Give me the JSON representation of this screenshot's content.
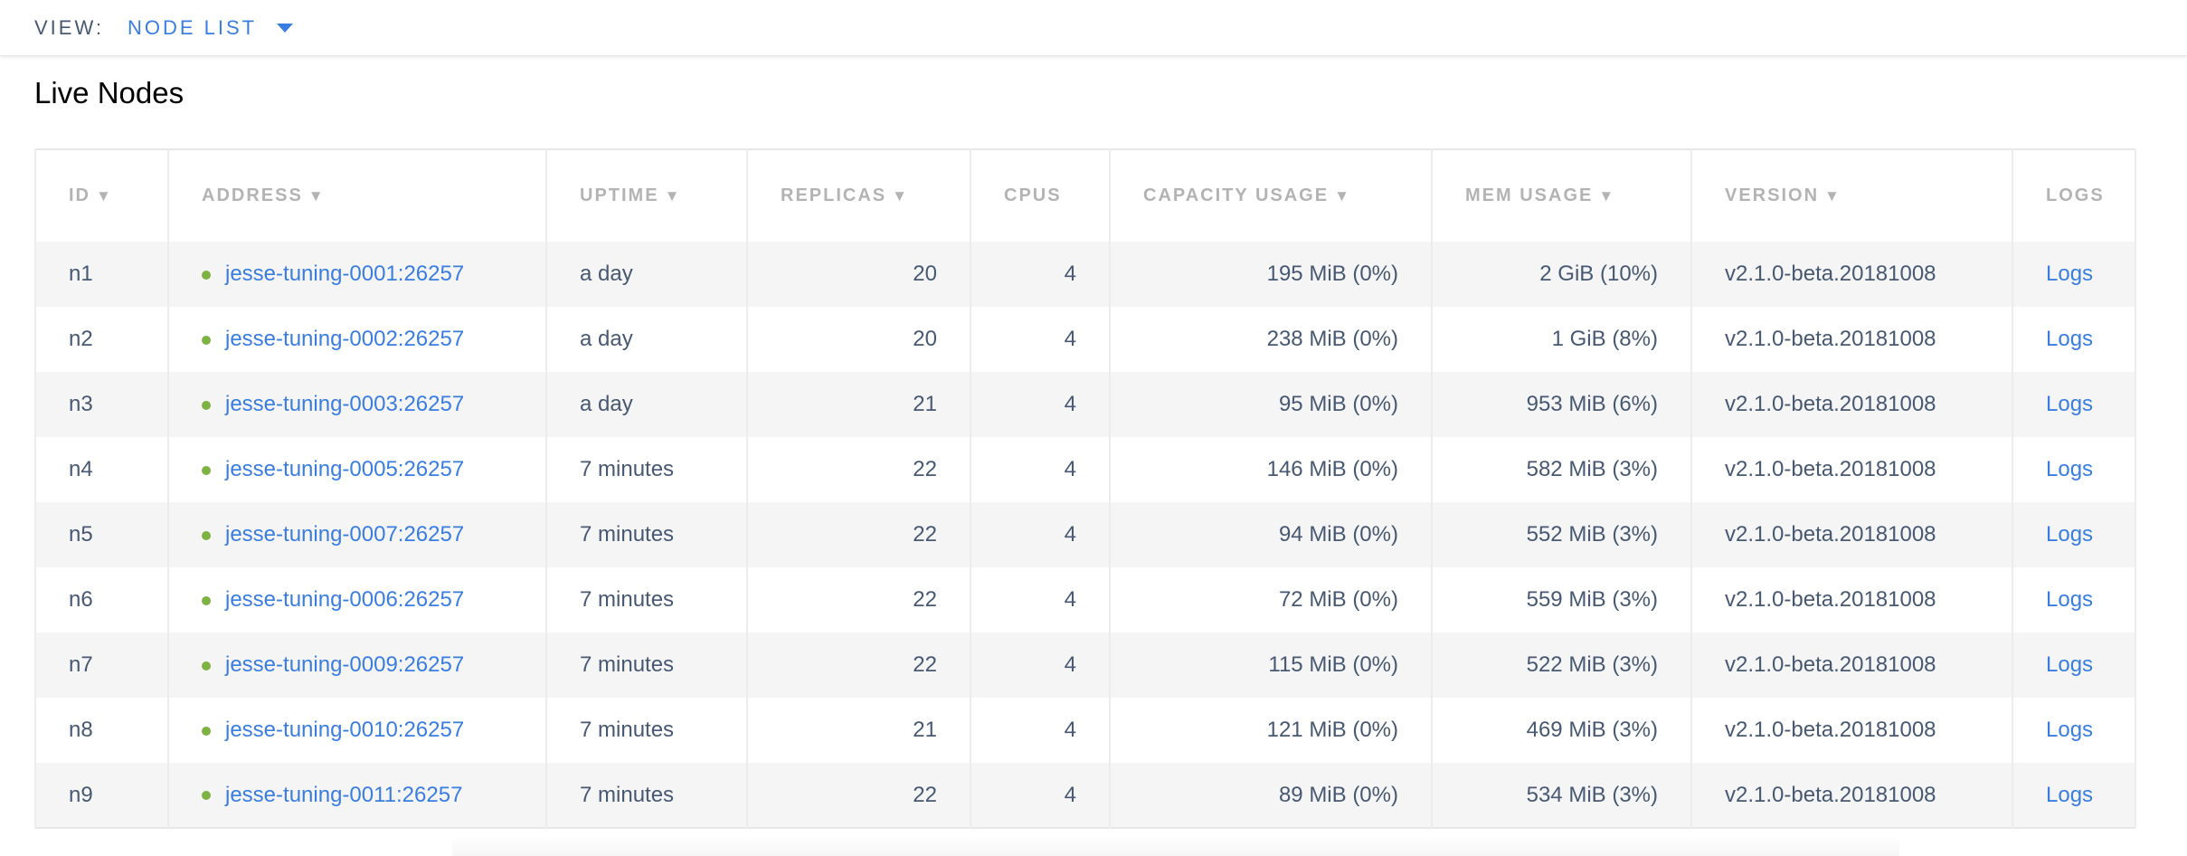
{
  "topbar": {
    "view_label": "VIEW:",
    "view_value": "NODE LIST",
    "caret_icon": "caret-down-icon",
    "accent": "#3a7de1"
  },
  "title": "Live Nodes",
  "table": {
    "columns": [
      {
        "label": "ID",
        "sortable": true
      },
      {
        "label": "ADDRESS",
        "sortable": true
      },
      {
        "label": "UPTIME",
        "sortable": true
      },
      {
        "label": "REPLICAS",
        "sortable": true
      },
      {
        "label": "CPUS",
        "sortable": false
      },
      {
        "label": "CAPACITY USAGE",
        "sortable": true
      },
      {
        "label": "MEM USAGE",
        "sortable": true
      },
      {
        "label": "VERSION",
        "sortable": true
      },
      {
        "label": "LOGS",
        "sortable": false
      }
    ],
    "status_color": "#7cb342",
    "rows": [
      {
        "id": "n1",
        "address": "jesse-tuning-0001:26257",
        "uptime": "a day",
        "replicas": "20",
        "cpus": "4",
        "capacity": "195 MiB (0%)",
        "mem": "2 GiB (10%)",
        "version": "v2.1.0-beta.20181008",
        "logs": "Logs"
      },
      {
        "id": "n2",
        "address": "jesse-tuning-0002:26257",
        "uptime": "a day",
        "replicas": "20",
        "cpus": "4",
        "capacity": "238 MiB (0%)",
        "mem": "1 GiB (8%)",
        "version": "v2.1.0-beta.20181008",
        "logs": "Logs"
      },
      {
        "id": "n3",
        "address": "jesse-tuning-0003:26257",
        "uptime": "a day",
        "replicas": "21",
        "cpus": "4",
        "capacity": "95 MiB (0%)",
        "mem": "953 MiB (6%)",
        "version": "v2.1.0-beta.20181008",
        "logs": "Logs"
      },
      {
        "id": "n4",
        "address": "jesse-tuning-0005:26257",
        "uptime": "7 minutes",
        "replicas": "22",
        "cpus": "4",
        "capacity": "146 MiB (0%)",
        "mem": "582 MiB (3%)",
        "version": "v2.1.0-beta.20181008",
        "logs": "Logs"
      },
      {
        "id": "n5",
        "address": "jesse-tuning-0007:26257",
        "uptime": "7 minutes",
        "replicas": "22",
        "cpus": "4",
        "capacity": "94 MiB (0%)",
        "mem": "552 MiB (3%)",
        "version": "v2.1.0-beta.20181008",
        "logs": "Logs"
      },
      {
        "id": "n6",
        "address": "jesse-tuning-0006:26257",
        "uptime": "7 minutes",
        "replicas": "22",
        "cpus": "4",
        "capacity": "72 MiB (0%)",
        "mem": "559 MiB (3%)",
        "version": "v2.1.0-beta.20181008",
        "logs": "Logs"
      },
      {
        "id": "n7",
        "address": "jesse-tuning-0009:26257",
        "uptime": "7 minutes",
        "replicas": "22",
        "cpus": "4",
        "capacity": "115 MiB (0%)",
        "mem": "522 MiB (3%)",
        "version": "v2.1.0-beta.20181008",
        "logs": "Logs"
      },
      {
        "id": "n8",
        "address": "jesse-tuning-0010:26257",
        "uptime": "7 minutes",
        "replicas": "21",
        "cpus": "4",
        "capacity": "121 MiB (0%)",
        "mem": "469 MiB (3%)",
        "version": "v2.1.0-beta.20181008",
        "logs": "Logs"
      },
      {
        "id": "n9",
        "address": "jesse-tuning-0011:26257",
        "uptime": "7 minutes",
        "replicas": "22",
        "cpus": "4",
        "capacity": "89 MiB (0%)",
        "mem": "534 MiB (3%)",
        "version": "v2.1.0-beta.20181008",
        "logs": "Logs"
      }
    ]
  }
}
